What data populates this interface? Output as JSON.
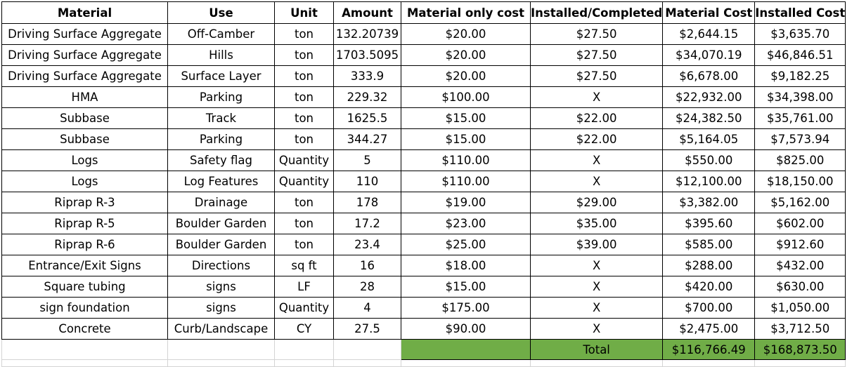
{
  "headers": [
    "Material",
    "Use",
    "Unit",
    "Amount",
    "Material only cost",
    "Installed/Completed",
    "Material Cost",
    "Installed Cost"
  ],
  "rows": [
    [
      "Driving Surface Aggregate",
      "Off-Camber",
      "ton",
      "132.20739",
      "$20.00",
      "$27.50",
      "$2,644.15",
      "$3,635.70"
    ],
    [
      "Driving Surface Aggregate",
      "Hills",
      "ton",
      "1703.5095",
      "$20.00",
      "$27.50",
      "$34,070.19",
      "$46,846.51"
    ],
    [
      "Driving Surface Aggregate",
      "Surface Layer",
      "ton",
      "333.9",
      "$20.00",
      "$27.50",
      "$6,678.00",
      "$9,182.25"
    ],
    [
      "HMA",
      "Parking",
      "ton",
      "229.32",
      "$100.00",
      "X",
      "$22,932.00",
      "$34,398.00"
    ],
    [
      "Subbase",
      "Track",
      "ton",
      "1625.5",
      "$15.00",
      "$22.00",
      "$24,382.50",
      "$35,761.00"
    ],
    [
      "Subbase",
      "Parking",
      "ton",
      "344.27",
      "$15.00",
      "$22.00",
      "$5,164.05",
      "$7,573.94"
    ],
    [
      "Logs",
      "Safety flag",
      "Quantity",
      "5",
      "$110.00",
      "X",
      "$550.00",
      "$825.00"
    ],
    [
      "Logs",
      "Log Features",
      "Quantity",
      "110",
      "$110.00",
      "X",
      "$12,100.00",
      "$18,150.00"
    ],
    [
      "Riprap R-3",
      "Drainage",
      "ton",
      "178",
      "$19.00",
      "$29.00",
      "$3,382.00",
      "$5,162.00"
    ],
    [
      "Riprap R-5",
      "Boulder Garden",
      "ton",
      "17.2",
      "$23.00",
      "$35.00",
      "$395.60",
      "$602.00"
    ],
    [
      "Riprap R-6",
      "Boulder Garden",
      "ton",
      "23.4",
      "$25.00",
      "$39.00",
      "$585.00",
      "$912.60"
    ],
    [
      "Entrance/Exit Signs",
      "Directions",
      "sq ft",
      "16",
      "$18.00",
      "X",
      "$288.00",
      "$432.00"
    ],
    [
      "Square tubing",
      "signs",
      "LF",
      "28",
      "$15.00",
      "X",
      "$420.00",
      "$630.00"
    ],
    [
      "sign foundation",
      "signs",
      "Quantity",
      "4",
      "$175.00",
      "X",
      "$700.00",
      "$1,050.00"
    ],
    [
      "Concrete",
      "Curb/Landscape",
      "CY",
      "27.5",
      "$90.00",
      "X",
      "$2,475.00",
      "$3,712.50"
    ]
  ],
  "totals": {
    "label": "Total",
    "material_cost": "$116,766.49",
    "installed_cost": "$168,873.50"
  },
  "colors": {
    "total_fill": "#70ad47",
    "grid": "#d4d4d4"
  }
}
